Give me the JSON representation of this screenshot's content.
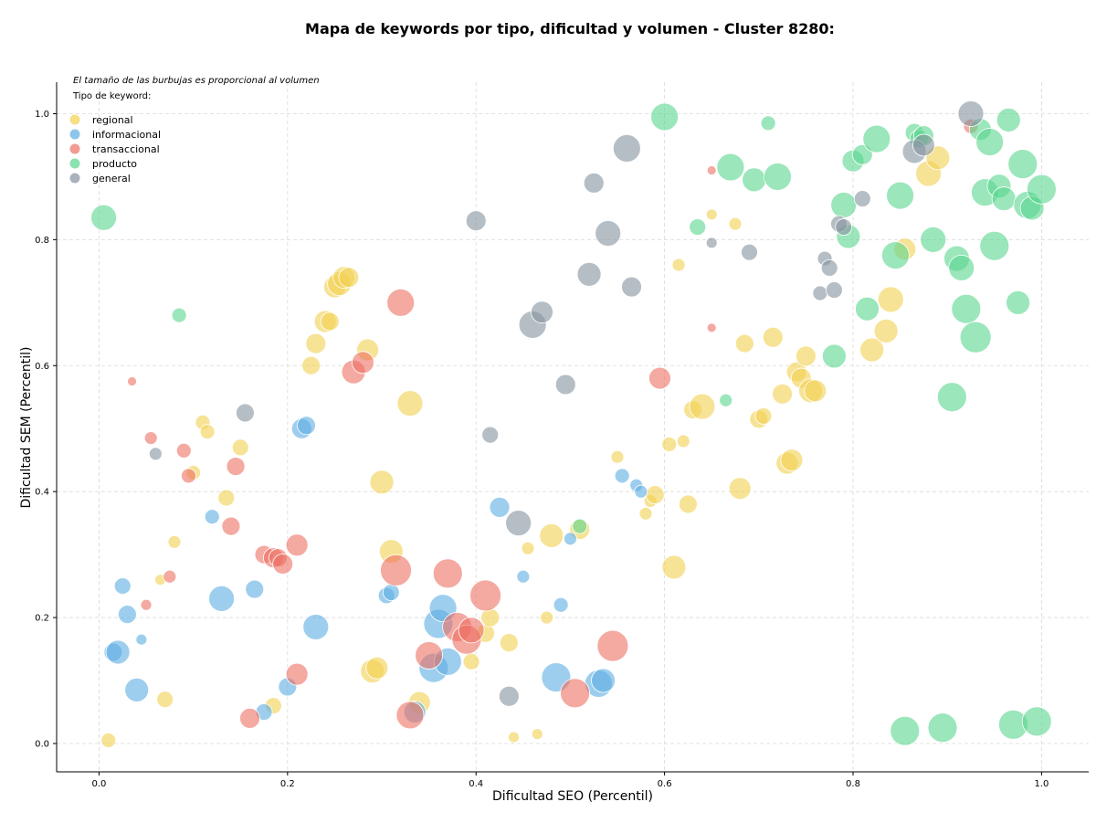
{
  "chart_data": {
    "type": "scatter",
    "title": "Mapa de keywords por tipo, dificultad y volumen - Cluster 8280:",
    "xlabel": "Dificultad SEO (Percentil)",
    "ylabel": "Dificultad SEM (Percentil)",
    "xlim": [
      -0.045,
      1.05
    ],
    "ylim": [
      -0.045,
      1.05
    ],
    "xticks": [
      "0.0",
      "0.2",
      "0.4",
      "0.6",
      "0.8",
      "1.0"
    ],
    "yticks": [
      "0.0",
      "0.2",
      "0.4",
      "0.6",
      "0.8",
      "1.0"
    ],
    "grid": true,
    "note": "El tamaño de las burbujas es proporcional al volumen",
    "legend_title": "Tipo de keyword:",
    "legend_position": "top-left",
    "series": [
      {
        "name": "regional",
        "color": "#F2D150",
        "points": [
          [
            0.01,
            0.005,
            8
          ],
          [
            0.07,
            0.07,
            9
          ],
          [
            0.065,
            0.26,
            6
          ],
          [
            0.08,
            0.32,
            7
          ],
          [
            0.1,
            0.43,
            8
          ],
          [
            0.11,
            0.51,
            8
          ],
          [
            0.115,
            0.495,
            8
          ],
          [
            0.135,
            0.39,
            9
          ],
          [
            0.15,
            0.47,
            9
          ],
          [
            0.185,
            0.06,
            9
          ],
          [
            0.225,
            0.6,
            10
          ],
          [
            0.23,
            0.635,
            11
          ],
          [
            0.24,
            0.67,
            12
          ],
          [
            0.245,
            0.67,
            10
          ],
          [
            0.25,
            0.725,
            12
          ],
          [
            0.255,
            0.73,
            13
          ],
          [
            0.26,
            0.74,
            12
          ],
          [
            0.265,
            0.74,
            11
          ],
          [
            0.285,
            0.625,
            12
          ],
          [
            0.29,
            0.115,
            13
          ],
          [
            0.295,
            0.12,
            12
          ],
          [
            0.3,
            0.415,
            13
          ],
          [
            0.31,
            0.305,
            13
          ],
          [
            0.33,
            0.54,
            14
          ],
          [
            0.34,
            0.065,
            12
          ],
          [
            0.395,
            0.13,
            9
          ],
          [
            0.41,
            0.175,
            10
          ],
          [
            0.415,
            0.2,
            10
          ],
          [
            0.435,
            0.16,
            10
          ],
          [
            0.455,
            0.31,
            7
          ],
          [
            0.44,
            0.01,
            6
          ],
          [
            0.465,
            0.015,
            6
          ],
          [
            0.475,
            0.2,
            7
          ],
          [
            0.48,
            0.33,
            13
          ],
          [
            0.51,
            0.34,
            11
          ],
          [
            0.55,
            0.455,
            7
          ],
          [
            0.58,
            0.365,
            7
          ],
          [
            0.585,
            0.385,
            7
          ],
          [
            0.59,
            0.395,
            10
          ],
          [
            0.605,
            0.475,
            8
          ],
          [
            0.61,
            0.28,
            13
          ],
          [
            0.615,
            0.76,
            7
          ],
          [
            0.62,
            0.48,
            7
          ],
          [
            0.625,
            0.38,
            10
          ],
          [
            0.63,
            0.53,
            10
          ],
          [
            0.64,
            0.535,
            14
          ],
          [
            0.65,
            0.84,
            6
          ],
          [
            0.675,
            0.825,
            7
          ],
          [
            0.68,
            0.405,
            12
          ],
          [
            0.685,
            0.635,
            10
          ],
          [
            0.7,
            0.515,
            10
          ],
          [
            0.705,
            0.52,
            9
          ],
          [
            0.715,
            0.645,
            11
          ],
          [
            0.725,
            0.555,
            11
          ],
          [
            0.73,
            0.445,
            12
          ],
          [
            0.735,
            0.45,
            12
          ],
          [
            0.74,
            0.59,
            11
          ],
          [
            0.745,
            0.58,
            11
          ],
          [
            0.75,
            0.615,
            11
          ],
          [
            0.755,
            0.56,
            13
          ],
          [
            0.76,
            0.56,
            12
          ],
          [
            0.82,
            0.625,
            13
          ],
          [
            0.835,
            0.655,
            13
          ],
          [
            0.84,
            0.705,
            14
          ],
          [
            0.855,
            0.785,
            12
          ],
          [
            0.88,
            0.905,
            14
          ],
          [
            0.89,
            0.93,
            13
          ]
        ]
      },
      {
        "name": "informacional",
        "color": "#5DADE2",
        "points": [
          [
            0.015,
            0.145,
            10
          ],
          [
            0.02,
            0.145,
            13
          ],
          [
            0.025,
            0.25,
            9
          ],
          [
            0.03,
            0.205,
            10
          ],
          [
            0.04,
            0.085,
            13
          ],
          [
            0.045,
            0.165,
            6
          ],
          [
            0.12,
            0.36,
            8
          ],
          [
            0.13,
            0.23,
            14
          ],
          [
            0.165,
            0.245,
            10
          ],
          [
            0.175,
            0.05,
            9
          ],
          [
            0.2,
            0.09,
            10
          ],
          [
            0.215,
            0.5,
            11
          ],
          [
            0.22,
            0.505,
            10
          ],
          [
            0.23,
            0.185,
            14
          ],
          [
            0.305,
            0.235,
            9
          ],
          [
            0.31,
            0.24,
            9
          ],
          [
            0.335,
            0.05,
            12
          ],
          [
            0.355,
            0.12,
            16
          ],
          [
            0.36,
            0.19,
            16
          ],
          [
            0.365,
            0.215,
            15
          ],
          [
            0.37,
            0.13,
            15
          ],
          [
            0.425,
            0.375,
            11
          ],
          [
            0.45,
            0.265,
            7
          ],
          [
            0.485,
            0.105,
            16
          ],
          [
            0.49,
            0.22,
            8
          ],
          [
            0.5,
            0.325,
            7
          ],
          [
            0.53,
            0.095,
            15
          ],
          [
            0.535,
            0.1,
            13
          ],
          [
            0.555,
            0.425,
            8
          ],
          [
            0.57,
            0.41,
            7
          ],
          [
            0.575,
            0.4,
            7
          ]
        ]
      },
      {
        "name": "transaccional",
        "color": "#EC7063",
        "points": [
          [
            0.035,
            0.575,
            5
          ],
          [
            0.05,
            0.22,
            6
          ],
          [
            0.055,
            0.485,
            7
          ],
          [
            0.075,
            0.265,
            7
          ],
          [
            0.09,
            0.465,
            8
          ],
          [
            0.095,
            0.425,
            8
          ],
          [
            0.145,
            0.44,
            10
          ],
          [
            0.14,
            0.345,
            10
          ],
          [
            0.16,
            0.04,
            11
          ],
          [
            0.175,
            0.3,
            10
          ],
          [
            0.185,
            0.295,
            11
          ],
          [
            0.19,
            0.295,
            10
          ],
          [
            0.195,
            0.285,
            11
          ],
          [
            0.21,
            0.315,
            12
          ],
          [
            0.21,
            0.11,
            12
          ],
          [
            0.27,
            0.59,
            13
          ],
          [
            0.28,
            0.605,
            12
          ],
          [
            0.315,
            0.275,
            17
          ],
          [
            0.32,
            0.7,
            15
          ],
          [
            0.33,
            0.045,
            15
          ],
          [
            0.35,
            0.14,
            15
          ],
          [
            0.37,
            0.27,
            16
          ],
          [
            0.38,
            0.185,
            16
          ],
          [
            0.39,
            0.165,
            16
          ],
          [
            0.395,
            0.18,
            14
          ],
          [
            0.41,
            0.235,
            17
          ],
          [
            0.505,
            0.08,
            16
          ],
          [
            0.545,
            0.155,
            17
          ],
          [
            0.595,
            0.58,
            12
          ],
          [
            0.65,
            0.91,
            5
          ],
          [
            0.65,
            0.66,
            5
          ],
          [
            0.925,
            0.98,
            8
          ]
        ]
      },
      {
        "name": "producto",
        "color": "#58D68D",
        "points": [
          [
            0.005,
            0.835,
            14
          ],
          [
            0.085,
            0.68,
            8
          ],
          [
            0.51,
            0.345,
            8
          ],
          [
            0.6,
            0.995,
            15
          ],
          [
            0.635,
            0.82,
            9
          ],
          [
            0.665,
            0.545,
            7
          ],
          [
            0.67,
            0.915,
            15
          ],
          [
            0.695,
            0.895,
            13
          ],
          [
            0.71,
            0.985,
            8
          ],
          [
            0.72,
            0.9,
            15
          ],
          [
            0.78,
            0.615,
            13
          ],
          [
            0.79,
            0.855,
            14
          ],
          [
            0.795,
            0.805,
            13
          ],
          [
            0.8,
            0.925,
            12
          ],
          [
            0.81,
            0.935,
            11
          ],
          [
            0.815,
            0.69,
            13
          ],
          [
            0.825,
            0.96,
            15
          ],
          [
            0.845,
            0.775,
            15
          ],
          [
            0.85,
            0.87,
            15
          ],
          [
            0.855,
            0.02,
            16
          ],
          [
            0.865,
            0.97,
            10
          ],
          [
            0.87,
            0.96,
            10
          ],
          [
            0.875,
            0.965,
            11
          ],
          [
            0.885,
            0.8,
            14
          ],
          [
            0.895,
            0.025,
            16
          ],
          [
            0.905,
            0.55,
            16
          ],
          [
            0.91,
            0.77,
            14
          ],
          [
            0.915,
            0.755,
            14
          ],
          [
            0.92,
            0.69,
            16
          ],
          [
            0.93,
            0.645,
            17
          ],
          [
            0.935,
            0.975,
            12
          ],
          [
            0.94,
            0.875,
            15
          ],
          [
            0.945,
            0.955,
            15
          ],
          [
            0.95,
            0.79,
            16
          ],
          [
            0.955,
            0.885,
            13
          ],
          [
            0.96,
            0.865,
            13
          ],
          [
            0.965,
            0.99,
            13
          ],
          [
            0.97,
            0.03,
            16
          ],
          [
            0.975,
            0.7,
            13
          ],
          [
            0.98,
            0.92,
            16
          ],
          [
            0.985,
            0.855,
            15
          ],
          [
            0.99,
            0.85,
            13
          ],
          [
            0.995,
            0.035,
            16
          ],
          [
            1.0,
            0.88,
            16
          ]
        ]
      },
      {
        "name": "general",
        "color": "#85929E",
        "points": [
          [
            0.06,
            0.46,
            7
          ],
          [
            0.155,
            0.525,
            10
          ],
          [
            0.4,
            0.83,
            11
          ],
          [
            0.415,
            0.49,
            9
          ],
          [
            0.435,
            0.075,
            11
          ],
          [
            0.445,
            0.35,
            14
          ],
          [
            0.46,
            0.665,
            15
          ],
          [
            0.47,
            0.685,
            12
          ],
          [
            0.495,
            0.57,
            11
          ],
          [
            0.52,
            0.745,
            13
          ],
          [
            0.525,
            0.89,
            11
          ],
          [
            0.54,
            0.81,
            14
          ],
          [
            0.56,
            0.945,
            15
          ],
          [
            0.565,
            0.725,
            11
          ],
          [
            0.65,
            0.795,
            6
          ],
          [
            0.69,
            0.78,
            9
          ],
          [
            0.765,
            0.715,
            8
          ],
          [
            0.77,
            0.77,
            8
          ],
          [
            0.775,
            0.755,
            9
          ],
          [
            0.78,
            0.72,
            9
          ],
          [
            0.785,
            0.825,
            9
          ],
          [
            0.79,
            0.82,
            9
          ],
          [
            0.81,
            0.865,
            9
          ],
          [
            0.865,
            0.94,
            13
          ],
          [
            0.875,
            0.95,
            12
          ],
          [
            0.925,
            1.0,
            14
          ]
        ]
      }
    ]
  }
}
